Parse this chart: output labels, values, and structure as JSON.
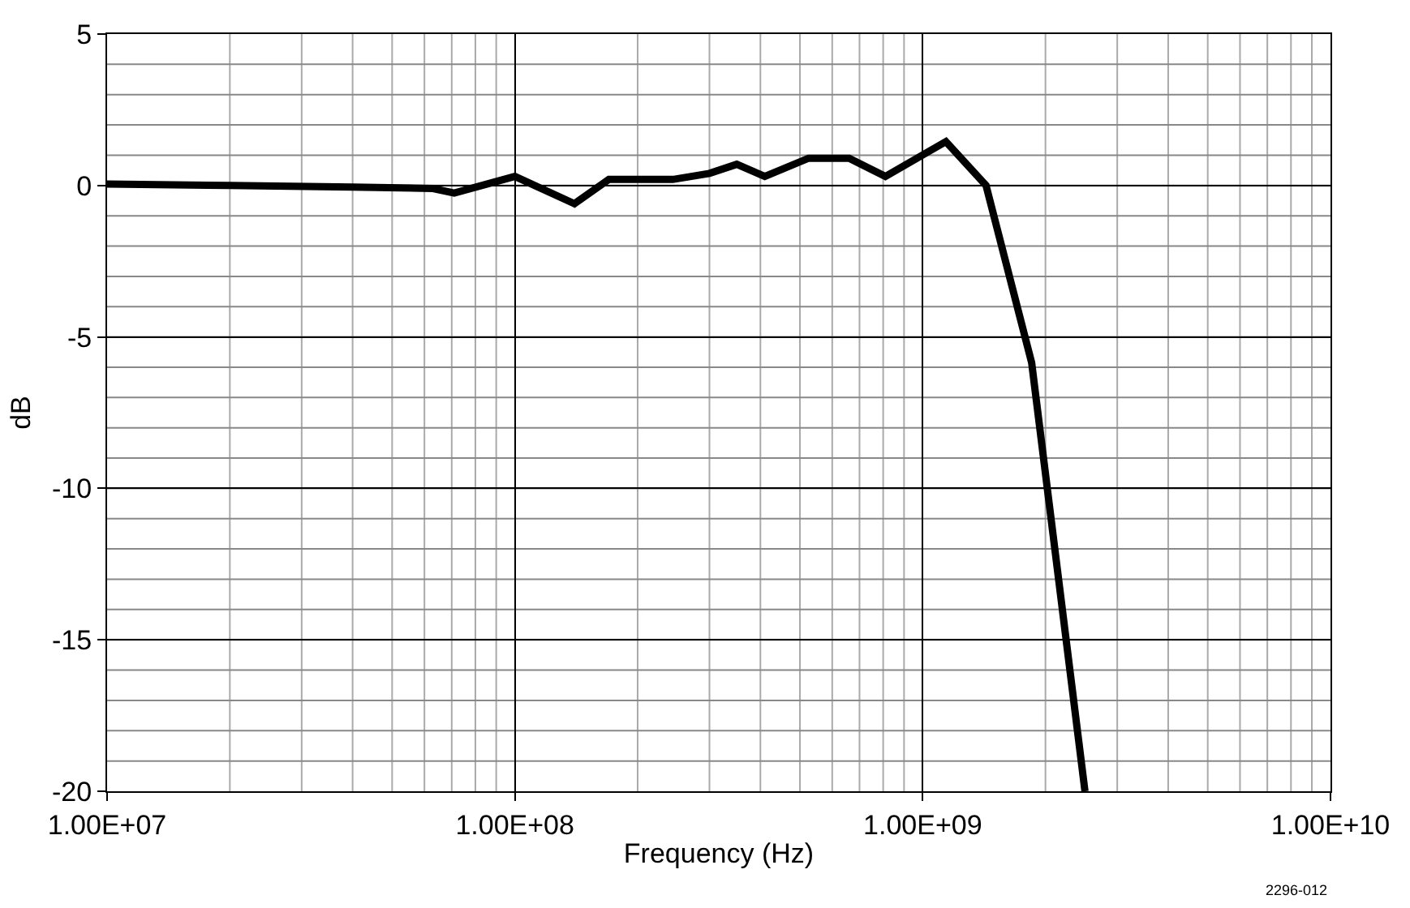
{
  "chart_data": {
    "type": "line",
    "xlabel": "Frequency (Hz)",
    "ylabel": "dB",
    "log": "x",
    "grid": true,
    "marker": "none",
    "line_style": "solid",
    "x": [
      10000000.0,
      20000000.0,
      40000000.0,
      63000000.0,
      71000000.0,
      100000000.0,
      140000000.0,
      170000000.0,
      244000000.0,
      300000000.0,
      350000000.0,
      410000000.0,
      525000000.0,
      660000000.0,
      810000000.0,
      1140000000.0,
      1430000000.0,
      1850000000.0,
      2500000000.0
    ],
    "series": [
      {
        "color": "#000000",
        "values": [
          0.05,
          0.0,
          -0.05,
          -0.1,
          -0.25,
          0.3,
          -0.6,
          0.2,
          0.2,
          0.4,
          0.7,
          0.3,
          0.9,
          0.9,
          0.3,
          1.45,
          0.0,
          -5.85,
          -20
        ]
      }
    ],
    "xlim": [
      10000000.0,
      10000000000.0
    ],
    "xticks": [
      {
        "value": 10000000.0,
        "label": "1.00E+07"
      },
      {
        "value": 100000000.0,
        "label": "1.00E+08"
      },
      {
        "value": 1000000000.0,
        "label": "1.00E+09"
      },
      {
        "value": 10000000000.0,
        "label": "1.00E+10"
      }
    ],
    "ylim": [
      -20,
      5
    ],
    "yticks": [
      -20,
      -15,
      -10,
      -5,
      0,
      5
    ],
    "annotations": [
      "2296-012"
    ]
  }
}
